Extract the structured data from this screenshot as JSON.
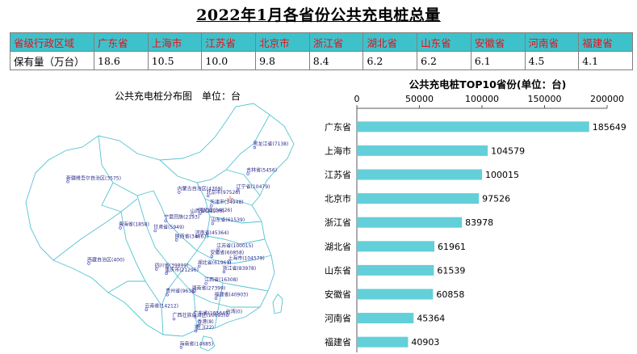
{
  "page": {
    "title": "2022年1月各省份公共充电桩总量"
  },
  "table": {
    "header_label": "省级行政区域",
    "row_label": "保有量（万台）",
    "provinces": [
      "广东省",
      "上海市",
      "江苏省",
      "北京市",
      "浙江省",
      "湖北省",
      "山东省",
      "安徽省",
      "河南省",
      "福建省"
    ],
    "values": [
      "18.6",
      "10.5",
      "10.0",
      "9.8",
      "8.4",
      "6.2",
      "6.2",
      "6.1",
      "4.5",
      "4.1"
    ]
  },
  "map": {
    "title": "公共充电桩分布图　单位：台",
    "labels": [
      {
        "text": "黑龙江省(7138)",
        "lon": 127.5,
        "lat": 47.3
      },
      {
        "text": "吉林省(5456)",
        "lon": 125.9,
        "lat": 43.6
      },
      {
        "text": "辽宁省(10479)",
        "lon": 123.5,
        "lat": 41.3
      },
      {
        "text": "内蒙古自治区(4709)",
        "lon": 109.5,
        "lat": 41.0
      },
      {
        "text": "北京市(97526)",
        "lon": 116.4,
        "lat": 40.5
      },
      {
        "text": "天津市(34948)",
        "lon": 117.2,
        "lat": 39.1
      },
      {
        "text": "新疆维吾尔自治区(3575)",
        "lon": 83.0,
        "lat": 42.5
      },
      {
        "text": "山西省(22236)",
        "lon": 112.6,
        "lat": 37.9
      },
      {
        "text": "河北省(34626)",
        "lon": 114.5,
        "lat": 38.0
      },
      {
        "text": "宁夏回族(2193)",
        "lon": 106.3,
        "lat": 37.0
      },
      {
        "text": "山东省(61539)",
        "lon": 117.5,
        "lat": 36.6
      },
      {
        "text": "青海省(1858)",
        "lon": 95.5,
        "lat": 36.0
      },
      {
        "text": "甘肃省(5949)",
        "lon": 103.8,
        "lat": 35.6
      },
      {
        "text": "河南省(45364)",
        "lon": 113.7,
        "lat": 34.8
      },
      {
        "text": "陕西省(34867)",
        "lon": 108.9,
        "lat": 34.3
      },
      {
        "text": "江苏省(100015)",
        "lon": 118.8,
        "lat": 33.0
      },
      {
        "text": "安徽省(60858)",
        "lon": 117.3,
        "lat": 32.0
      },
      {
        "text": "上海市(104579)",
        "lon": 121.5,
        "lat": 31.2
      },
      {
        "text": "湖北省(61961)",
        "lon": 114.3,
        "lat": 30.6
      },
      {
        "text": "浙江省(83978)",
        "lon": 120.2,
        "lat": 29.8
      },
      {
        "text": "西藏自治区(400)",
        "lon": 88.0,
        "lat": 31.0
      },
      {
        "text": "四川省(39899)",
        "lon": 104.1,
        "lat": 30.2
      },
      {
        "text": "重庆市(21296)",
        "lon": 106.5,
        "lat": 29.6
      },
      {
        "text": "湖南省(27399)",
        "lon": 112.9,
        "lat": 27.0
      },
      {
        "text": "江西省(16308)",
        "lon": 115.9,
        "lat": 28.2
      },
      {
        "text": "福建省(40903)",
        "lon": 118.3,
        "lat": 26.1
      },
      {
        "text": "贵州省(9638)",
        "lon": 106.7,
        "lat": 26.6
      },
      {
        "text": "台湾(0)",
        "lon": 121.0,
        "lat": 23.7
      },
      {
        "text": "广西壮族自治区(10693)",
        "lon": 108.3,
        "lat": 23.2
      },
      {
        "text": "广东省(185649)",
        "lon": 113.3,
        "lat": 23.5
      },
      {
        "text": "云南省(14212)",
        "lon": 101.7,
        "lat": 24.5
      },
      {
        "text": "香港(8)",
        "lon": 114.2,
        "lat": 22.3
      },
      {
        "text": "澳门(22)",
        "lon": 113.5,
        "lat": 21.5
      },
      {
        "text": "海南省(14685)",
        "lon": 110.0,
        "lat": 19.2
      }
    ]
  },
  "chart_data": {
    "type": "bar",
    "orientation": "horizontal",
    "title": "公共充电桩TOP10省份(单位：台)",
    "categories": [
      "广东省",
      "上海市",
      "江苏省",
      "北京市",
      "浙江省",
      "湖北省",
      "山东省",
      "安徽省",
      "河南省",
      "福建省"
    ],
    "values": [
      185649,
      104579,
      100015,
      97526,
      83978,
      61961,
      61539,
      60858,
      45364,
      40903
    ],
    "xlim": [
      0,
      200000
    ],
    "xticks": [
      0,
      50000,
      100000,
      150000,
      200000
    ],
    "axis_position": "top",
    "grid": false,
    "bar_color": "#63cfd9"
  }
}
